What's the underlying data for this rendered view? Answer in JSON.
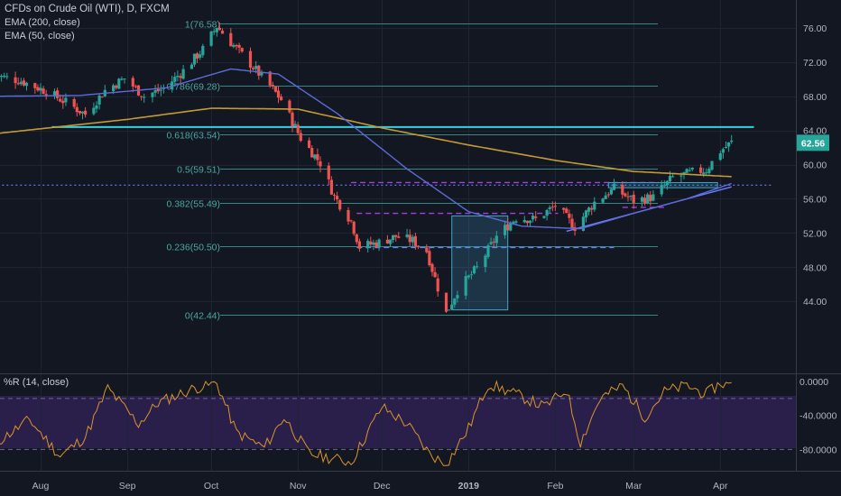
{
  "header": {
    "symbol_title": "CFDs on Crude Oil (WTI), D, FXCM",
    "indicator_1": "EMA (200, close)",
    "indicator_2": "EMA (50, close)"
  },
  "sub_pane": {
    "title": "%R (14, close)"
  },
  "colors": {
    "background": "#131722",
    "bull": "#26a69a",
    "bear": "#ef5350",
    "ema200": "#c49a36",
    "ema50": "#5d6bd8",
    "fib": "#2e8a86",
    "fib_text": "#4ba8a2",
    "purple_dash": "#a93ed9",
    "blue_dash": "#6f7dff",
    "cyan_line": "#2fd4e0",
    "wr_line": "#d9952b",
    "wr_band": "#2a1f4a"
  },
  "chart_data": [
    {
      "type": "candlestick",
      "y_axis": {
        "ticks": [
          "76.00",
          "72.00",
          "68.00",
          "64.00",
          "60.00",
          "56.00",
          "52.00",
          "48.00",
          "44.00"
        ],
        "range": [
          41.5,
          78.5
        ]
      },
      "x_axis": {
        "ticks": [
          "Aug",
          "Sep",
          "Oct",
          "Nov",
          "Dec",
          "2019",
          "Feb",
          "Mar",
          "Apr"
        ]
      },
      "last_price": "62.56",
      "fib_levels": [
        {
          "label": "1(76.58)",
          "price": 76.58
        },
        {
          "label": "0.786(69.28)",
          "price": 69.28
        },
        {
          "label": "0.618(63.54)",
          "price": 63.54
        },
        {
          "label": "0.5(59.51)",
          "price": 59.51
        },
        {
          "label": "0.382(55.49)",
          "price": 55.49
        },
        {
          "label": "0.236(50.50)",
          "price": 50.5
        },
        {
          "label": "0(42.44)",
          "price": 42.44
        }
      ],
      "keypoints": [
        {
          "date": "2018-07-15",
          "close": 70.5
        },
        {
          "date": "2018-07-25",
          "close": 69.8
        },
        {
          "date": "2018-08-03",
          "close": 68.6
        },
        {
          "date": "2018-08-10",
          "close": 67.3
        },
        {
          "date": "2018-08-17",
          "close": 65.9
        },
        {
          "date": "2018-08-24",
          "close": 68.7
        },
        {
          "date": "2018-08-31",
          "close": 70.1
        },
        {
          "date": "2018-09-07",
          "close": 68.0
        },
        {
          "date": "2018-09-14",
          "close": 68.9
        },
        {
          "date": "2018-09-21",
          "close": 71.0
        },
        {
          "date": "2018-09-28",
          "close": 73.5
        },
        {
          "date": "2018-10-03",
          "close": 76.2
        },
        {
          "date": "2018-10-08",
          "close": 74.3
        },
        {
          "date": "2018-10-15",
          "close": 71.8
        },
        {
          "date": "2018-10-22",
          "close": 69.2
        },
        {
          "date": "2018-10-26",
          "close": 67.6
        },
        {
          "date": "2018-11-02",
          "close": 63.1
        },
        {
          "date": "2018-11-09",
          "close": 60.2
        },
        {
          "date": "2018-11-14",
          "close": 56.3
        },
        {
          "date": "2018-11-20",
          "close": 53.4
        },
        {
          "date": "2018-11-23",
          "close": 50.4
        },
        {
          "date": "2018-11-30",
          "close": 50.9
        },
        {
          "date": "2018-12-06",
          "close": 51.6
        },
        {
          "date": "2018-12-12",
          "close": 51.1
        },
        {
          "date": "2018-12-17",
          "close": 49.9
        },
        {
          "date": "2018-12-21",
          "close": 45.6
        },
        {
          "date": "2018-12-24",
          "close": 42.6
        },
        {
          "date": "2018-12-28",
          "close": 45.3
        },
        {
          "date": "2019-01-04",
          "close": 47.9
        },
        {
          "date": "2019-01-11",
          "close": 51.6
        },
        {
          "date": "2019-01-18",
          "close": 53.8
        },
        {
          "date": "2019-01-25",
          "close": 53.6
        },
        {
          "date": "2019-02-01",
          "close": 55.2
        },
        {
          "date": "2019-02-08",
          "close": 52.7
        },
        {
          "date": "2019-02-15",
          "close": 55.6
        },
        {
          "date": "2019-02-22",
          "close": 57.2
        },
        {
          "date": "2019-03-01",
          "close": 55.8
        },
        {
          "date": "2019-03-08",
          "close": 56.2
        },
        {
          "date": "2019-03-15",
          "close": 58.5
        },
        {
          "date": "2019-03-22",
          "close": 59.1
        },
        {
          "date": "2019-03-27",
          "close": 59.4
        },
        {
          "date": "2019-04-01",
          "close": 61.6
        },
        {
          "date": "2019-04-05",
          "close": 62.6
        }
      ],
      "ema200": [
        {
          "date": "2018-07-15",
          "value": 63.6
        },
        {
          "date": "2018-09-01",
          "value": 65.3
        },
        {
          "date": "2018-10-01",
          "value": 66.6
        },
        {
          "date": "2018-11-01",
          "value": 66.5
        },
        {
          "date": "2018-12-01",
          "value": 64.3
        },
        {
          "date": "2019-01-01",
          "value": 62.3
        },
        {
          "date": "2019-02-01",
          "value": 60.5
        },
        {
          "date": "2019-03-01",
          "value": 59.2
        },
        {
          "date": "2019-04-05",
          "value": 58.6
        }
      ],
      "ema50": [
        {
          "date": "2018-07-15",
          "value": 68.0
        },
        {
          "date": "2018-08-15",
          "value": 68.1
        },
        {
          "date": "2018-09-15",
          "value": 69.0
        },
        {
          "date": "2018-10-08",
          "value": 71.2
        },
        {
          "date": "2018-10-25",
          "value": 70.6
        },
        {
          "date": "2018-11-15",
          "value": 66.0
        },
        {
          "date": "2018-12-10",
          "value": 59.5
        },
        {
          "date": "2019-01-01",
          "value": 54.5
        },
        {
          "date": "2019-01-20",
          "value": 52.8
        },
        {
          "date": "2019-02-10",
          "value": 52.5
        },
        {
          "date": "2019-03-01",
          "value": 54.3
        },
        {
          "date": "2019-03-20",
          "value": 56.0
        },
        {
          "date": "2019-04-05",
          "value": 57.8
        }
      ],
      "annotations": [
        {
          "type": "hline",
          "price": 64.4,
          "from": "2018-08-05",
          "to": "2019-04-13",
          "style": "solid-cyan"
        },
        {
          "type": "hline",
          "price": 57.6,
          "from": "2018-07-15",
          "to": "2019-04-20",
          "style": "dotted-blue"
        },
        {
          "type": "hline",
          "price": 57.9,
          "from": "2018-11-20",
          "to": "2019-03-10",
          "style": "dashed-purple"
        },
        {
          "type": "hline",
          "price": 54.3,
          "from": "2018-11-22",
          "to": "2019-02-02",
          "style": "dashed-purple"
        },
        {
          "type": "hline",
          "price": 50.3,
          "from": "2018-11-22",
          "to": "2019-02-22",
          "style": "dashed-blue"
        },
        {
          "type": "hline",
          "price": 55.0,
          "from": "2019-02-25",
          "to": "2019-03-12",
          "style": "dashed-purple"
        },
        {
          "type": "trendline",
          "from": {
            "date": "2019-02-05",
            "price": 52.2
          },
          "to": {
            "date": "2019-04-05",
            "price": 57.4
          },
          "style": "solid-blue"
        },
        {
          "type": "box",
          "from": "2018-12-26",
          "to": "2019-01-15",
          "top": 54.0,
          "bottom": 43.0
        },
        {
          "type": "box",
          "from": "2019-02-20",
          "to": "2019-03-31",
          "top": 57.9,
          "bottom": 57.3
        }
      ]
    },
    {
      "type": "line",
      "title": "%R (14, close)",
      "y_axis": {
        "ticks": [
          "0.0000",
          "-40.0000",
          "-80.0000"
        ],
        "range": [
          -100,
          2
        ]
      },
      "bands": [
        -20,
        -80
      ],
      "keypoints": [
        {
          "date": "2018-07-15",
          "value": -75
        },
        {
          "date": "2018-07-28",
          "value": -45
        },
        {
          "date": "2018-08-08",
          "value": -88
        },
        {
          "date": "2018-08-17",
          "value": -65
        },
        {
          "date": "2018-08-25",
          "value": -8
        },
        {
          "date": "2018-09-05",
          "value": -50
        },
        {
          "date": "2018-09-12",
          "value": -25
        },
        {
          "date": "2018-09-25",
          "value": -8
        },
        {
          "date": "2018-10-03",
          "value": -2
        },
        {
          "date": "2018-10-10",
          "value": -60
        },
        {
          "date": "2018-10-20",
          "value": -78
        },
        {
          "date": "2018-10-27",
          "value": -42
        },
        {
          "date": "2018-11-05",
          "value": -85
        },
        {
          "date": "2018-11-20",
          "value": -95
        },
        {
          "date": "2018-12-01",
          "value": -30
        },
        {
          "date": "2018-12-10",
          "value": -50
        },
        {
          "date": "2018-12-18",
          "value": -85
        },
        {
          "date": "2018-12-24",
          "value": -98
        },
        {
          "date": "2019-01-01",
          "value": -55
        },
        {
          "date": "2019-01-08",
          "value": -3
        },
        {
          "date": "2019-01-18",
          "value": -15
        },
        {
          "date": "2019-01-28",
          "value": -30
        },
        {
          "date": "2019-02-05",
          "value": -10
        },
        {
          "date": "2019-02-10",
          "value": -72
        },
        {
          "date": "2019-02-17",
          "value": -20
        },
        {
          "date": "2019-02-25",
          "value": -5
        },
        {
          "date": "2019-03-05",
          "value": -42
        },
        {
          "date": "2019-03-12",
          "value": -12
        },
        {
          "date": "2019-03-20",
          "value": -5
        },
        {
          "date": "2019-03-27",
          "value": -15
        },
        {
          "date": "2019-04-01",
          "value": -2
        },
        {
          "date": "2019-04-05",
          "value": -5
        }
      ]
    }
  ]
}
